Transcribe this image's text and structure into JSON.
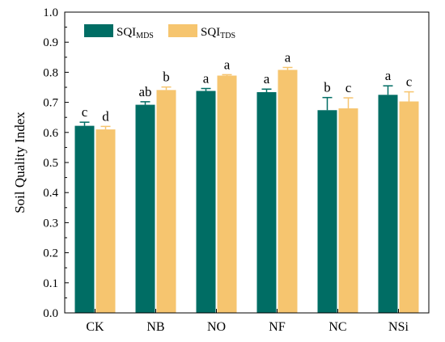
{
  "chart_data": {
    "type": "bar",
    "title": "",
    "xlabel": "",
    "ylabel": "Soil Quality Index",
    "ylim": [
      0,
      1.0
    ],
    "yticks": [
      "0.0",
      "0.1",
      "0.2",
      "0.3",
      "0.4",
      "0.5",
      "0.6",
      "0.7",
      "0.8",
      "0.9",
      "1.0"
    ],
    "categories": [
      "CK",
      "NB",
      "NO",
      "NF",
      "NC",
      "NSi"
    ],
    "legend_position": "top-left",
    "grid": false,
    "series": [
      {
        "name": "SQI",
        "name_sub": "MDS",
        "color": "#006D64",
        "values": [
          0.622,
          0.692,
          0.738,
          0.734,
          0.674,
          0.725
        ],
        "errors": [
          0.012,
          0.01,
          0.008,
          0.01,
          0.042,
          0.03
        ],
        "labels": [
          "c",
          "ab",
          "a",
          "a",
          "b",
          "a"
        ]
      },
      {
        "name": "SQI",
        "name_sub": "TDS",
        "color": "#F6C56F",
        "values": [
          0.61,
          0.741,
          0.789,
          0.808,
          0.68,
          0.703
        ],
        "errors": [
          0.01,
          0.01,
          0.003,
          0.008,
          0.035,
          0.032
        ],
        "labels": [
          "d",
          "b",
          "a",
          "a",
          "c",
          "c"
        ]
      }
    ]
  }
}
